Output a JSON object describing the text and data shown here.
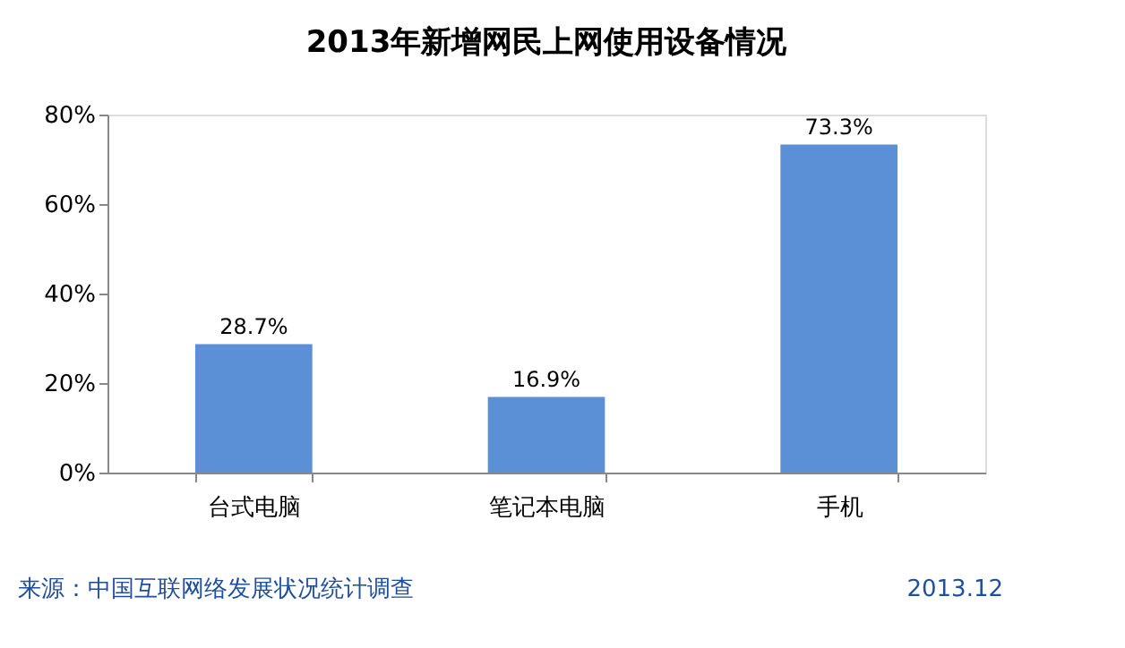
{
  "chart_data": {
    "type": "bar",
    "title": "2013年新增网民上网使用设备情况",
    "categories": [
      "台式电脑",
      "笔记本电脑",
      "手机"
    ],
    "values": [
      28.7,
      16.9,
      73.3
    ],
    "value_labels": [
      "28.7%",
      "16.9%",
      "73.3%"
    ],
    "color": "#5b8fd6",
    "ylim": [
      0,
      80
    ],
    "yticks": [
      {
        "value": 0,
        "label": "0%"
      },
      {
        "value": 20,
        "label": "20%"
      },
      {
        "value": 40,
        "label": "40%"
      },
      {
        "value": 60,
        "label": "60%"
      },
      {
        "value": 80,
        "label": "80%"
      }
    ],
    "grid": false,
    "annotations": [
      "来源：中国互联网络发展状况统计调查",
      "2013.12"
    ]
  }
}
